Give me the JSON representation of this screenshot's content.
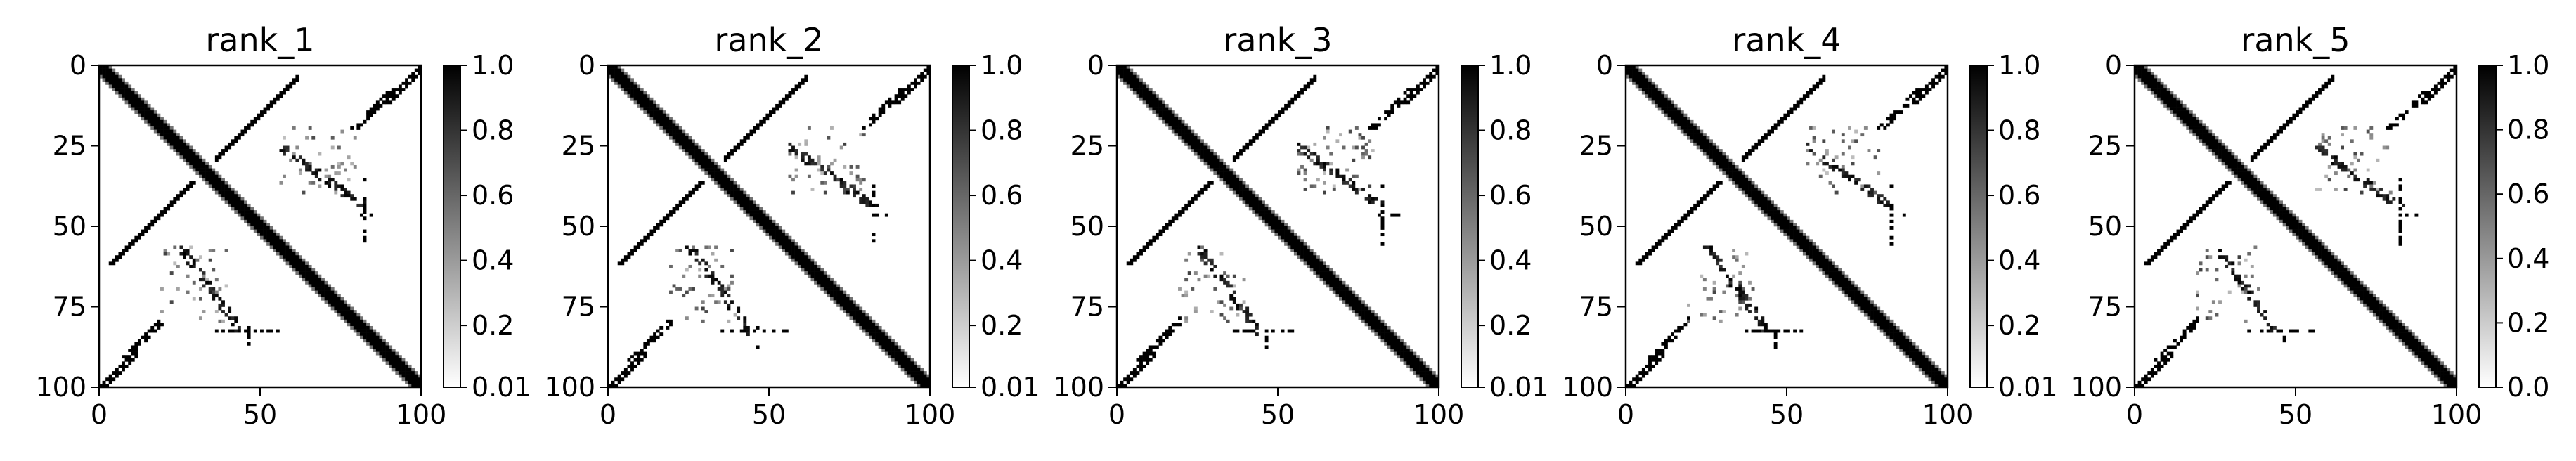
{
  "chart_data": [
    {
      "type": "heatmap",
      "title": "rank_1",
      "xlabel": "",
      "ylabel": "",
      "xlim": [
        0,
        100
      ],
      "ylim": [
        100,
        0
      ],
      "xticks": [
        "0",
        "50",
        "100"
      ],
      "yticks": [
        "0",
        "25",
        "50",
        "75",
        "100"
      ],
      "colorbar": {
        "cmap": "Greys",
        "range": [
          0.01,
          1.0
        ],
        "ticks": [
          "0.01",
          "0.2",
          "0.4",
          "0.6",
          "0.8",
          "1.0"
        ]
      }
    },
    {
      "type": "heatmap",
      "title": "rank_2",
      "xlabel": "",
      "ylabel": "",
      "xlim": [
        0,
        100
      ],
      "ylim": [
        100,
        0
      ],
      "xticks": [
        "0",
        "50",
        "100"
      ],
      "yticks": [
        "0",
        "25",
        "50",
        "75",
        "100"
      ],
      "colorbar": {
        "cmap": "Greys",
        "range": [
          0.01,
          1.0
        ],
        "ticks": [
          "0.01",
          "0.2",
          "0.4",
          "0.6",
          "0.8",
          "1.0"
        ]
      }
    },
    {
      "type": "heatmap",
      "title": "rank_3",
      "xlabel": "",
      "ylabel": "",
      "xlim": [
        0,
        100
      ],
      "ylim": [
        100,
        0
      ],
      "xticks": [
        "0",
        "50",
        "100"
      ],
      "yticks": [
        "0",
        "25",
        "50",
        "75",
        "100"
      ],
      "colorbar": {
        "cmap": "Greys",
        "range": [
          0.01,
          1.0
        ],
        "ticks": [
          "0.01",
          "0.2",
          "0.4",
          "0.6",
          "0.8",
          "1.0"
        ]
      }
    },
    {
      "type": "heatmap",
      "title": "rank_4",
      "xlabel": "",
      "ylabel": "",
      "xlim": [
        0,
        100
      ],
      "ylim": [
        100,
        0
      ],
      "xticks": [
        "0",
        "50",
        "100"
      ],
      "yticks": [
        "0",
        "25",
        "50",
        "75",
        "100"
      ],
      "colorbar": {
        "cmap": "Greys",
        "range": [
          0.01,
          1.0
        ],
        "ticks": [
          "0.01",
          "0.2",
          "0.4",
          "0.6",
          "0.8",
          "1.0"
        ]
      }
    },
    {
      "type": "heatmap",
      "title": "rank_5",
      "xlabel": "",
      "ylabel": "",
      "xlim": [
        0,
        100
      ],
      "ylim": [
        100,
        0
      ],
      "xticks": [
        "0",
        "50",
        "100"
      ],
      "yticks": [
        "0",
        "25",
        "50",
        "75",
        "100"
      ],
      "colorbar": {
        "cmap": "Greys",
        "range": [
          0.0,
          1.0
        ],
        "ticks": [
          "0.0",
          "0.2",
          "0.4",
          "0.6",
          "0.8",
          "1.0"
        ]
      }
    }
  ]
}
